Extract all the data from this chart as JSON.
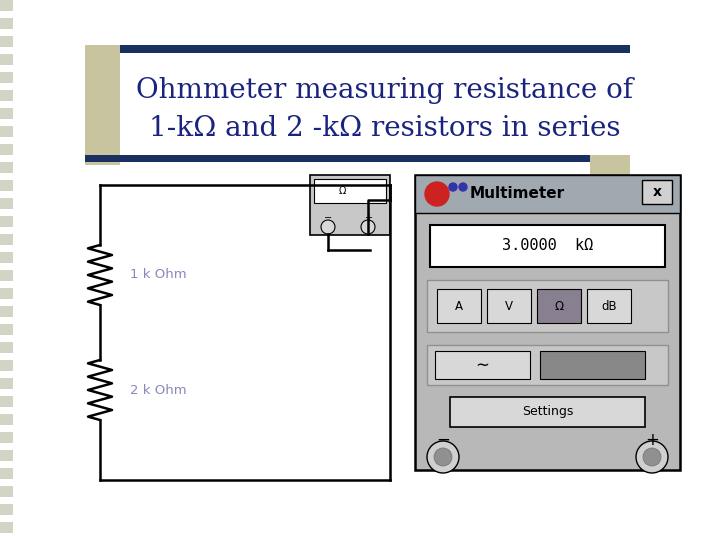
{
  "title_line1": "Ohmmeter measuring resistance of",
  "title_line2": "1-kΩ and 2 -kΩ resistors in series",
  "title_color": "#1a237e",
  "title_fontsize": 20,
  "bg_color": "#ffffff",
  "stripe_color": "#c8c8b8",
  "header_bar_color": "#1a3060",
  "circuit_color": "#000000",
  "resistor1_label": "1 k Ohm",
  "resistor2_label": "2 k Ohm",
  "resistor_label_color": "#8888bb",
  "multimeter_display": "3.0000  kΩ",
  "multimeter_title": "Multimeter",
  "multimeter_bg": "#b8b8b8",
  "khaki_color": "#c8c4a0"
}
